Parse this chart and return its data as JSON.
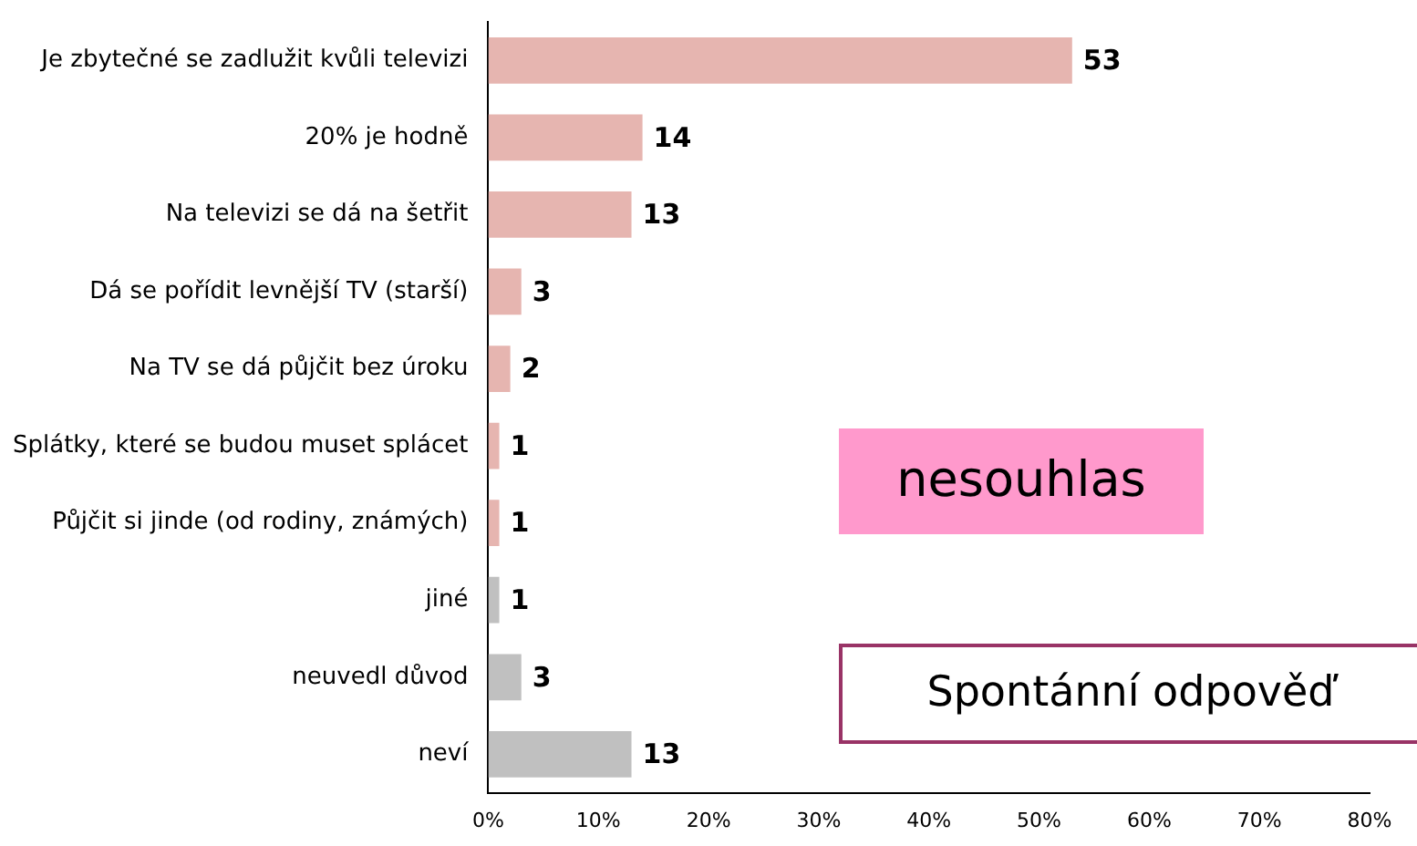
{
  "chart_data": {
    "type": "bar",
    "orientation": "horizontal",
    "categories": [
      "Je zbytečné se zadlužit kvůli televizi",
      "20% je hodně",
      "Na televizi se dá na šetřit",
      "Dá se pořídit levnější TV (starší)",
      "Na TV se dá půjčit bez úroku",
      "Splátky, které se budou muset splácet",
      "Půjčit si jinde (od rodiny, známých)",
      "jiné",
      "neuvedl důvod",
      "neví"
    ],
    "values": [
      53,
      14,
      13,
      3,
      2,
      1,
      1,
      1,
      3,
      13
    ],
    "colors": [
      "#e6b5b0",
      "#e6b5b0",
      "#e6b5b0",
      "#e6b5b0",
      "#e6b5b0",
      "#e6b5b0",
      "#e6b5b0",
      "#c0c0c0",
      "#c0c0c0",
      "#c0c0c0"
    ],
    "xlim": [
      0,
      80
    ],
    "xticks": [
      {
        "value": 0,
        "label": "0%"
      },
      {
        "value": 10,
        "label": "10%"
      },
      {
        "value": 20,
        "label": "20%"
      },
      {
        "value": 30,
        "label": "30%"
      },
      {
        "value": 40,
        "label": "40%"
      },
      {
        "value": 50,
        "label": "50%"
      },
      {
        "value": 60,
        "label": "60%"
      },
      {
        "value": 70,
        "label": "70%"
      },
      {
        "value": 80,
        "label": "80%"
      }
    ],
    "data_labels": true,
    "grid": false,
    "legend": false,
    "annotations": [
      "nesouhlas",
      "Spontánní odpověď"
    ]
  }
}
